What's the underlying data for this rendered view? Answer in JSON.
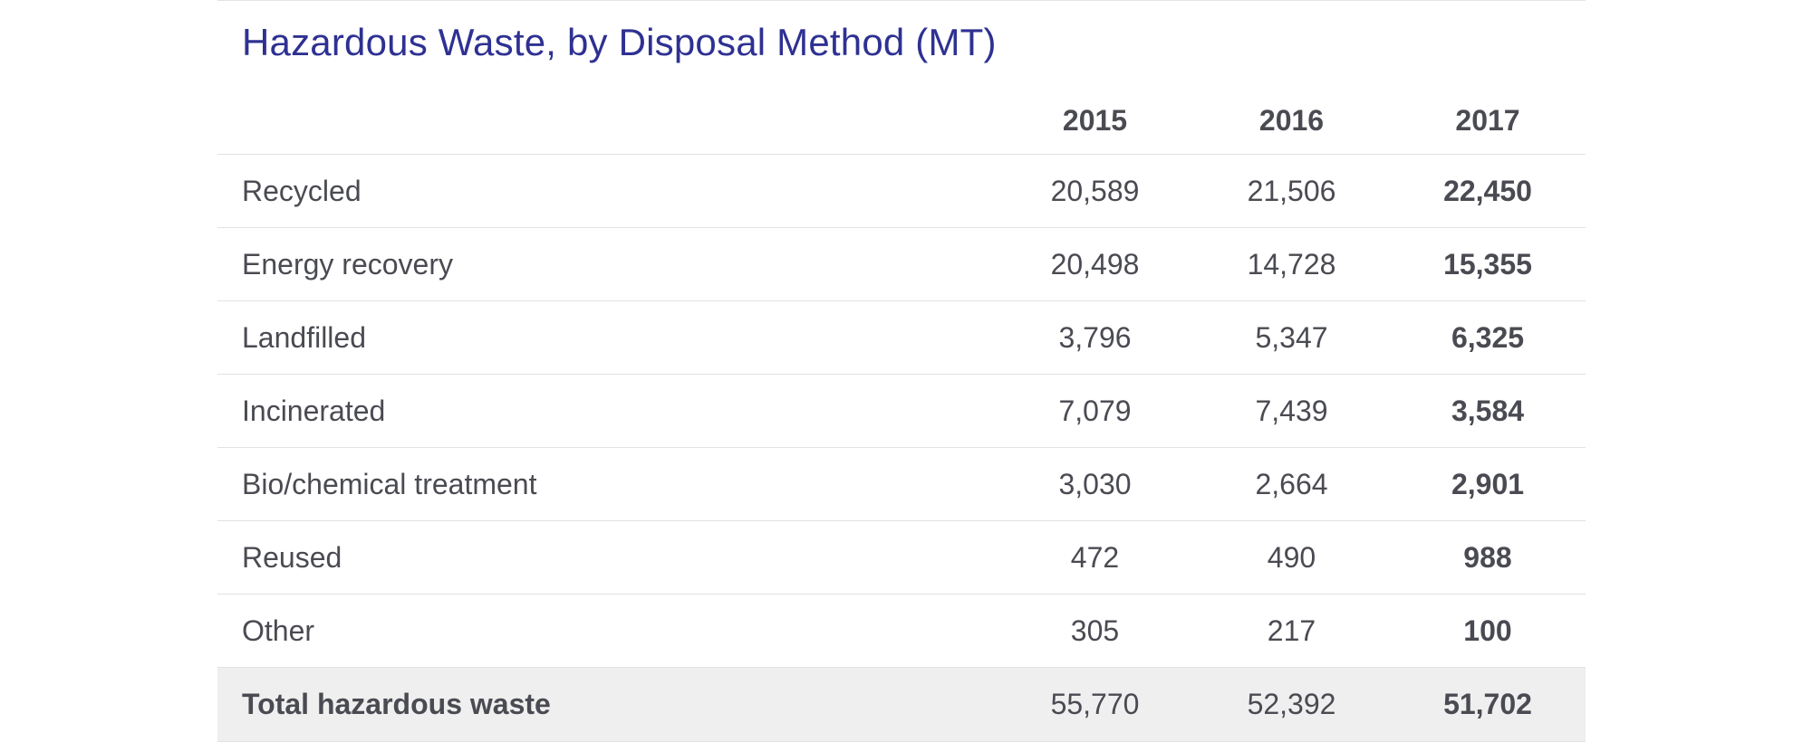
{
  "title": "Hazardous Waste, by Disposal Method (MT)",
  "table": {
    "columns": [
      "2015",
      "2016",
      "2017"
    ],
    "rows": [
      {
        "label": "Recycled",
        "values": [
          "20,589",
          "21,506",
          "22,450"
        ]
      },
      {
        "label": "Energy recovery",
        "values": [
          "20,498",
          "14,728",
          "15,355"
        ]
      },
      {
        "label": "Landfilled",
        "values": [
          "3,796",
          "5,347",
          "6,325"
        ]
      },
      {
        "label": "Incinerated",
        "values": [
          "7,079",
          "7,439",
          "3,584"
        ]
      },
      {
        "label": "Bio/chemical treatment",
        "values": [
          "3,030",
          "2,664",
          "2,901"
        ]
      },
      {
        "label": "Reused",
        "values": [
          "472",
          "490",
          "988"
        ]
      },
      {
        "label": "Other",
        "values": [
          "305",
          "217",
          "100"
        ]
      }
    ],
    "total": {
      "label": "Total hazardous waste",
      "values": [
        "55,770",
        "52,392",
        "51,702"
      ]
    }
  },
  "colors": {
    "title": "#2e3192",
    "text": "#4a4b52",
    "divider": "#e2e2e2",
    "total_row_bg": "#efefef"
  }
}
